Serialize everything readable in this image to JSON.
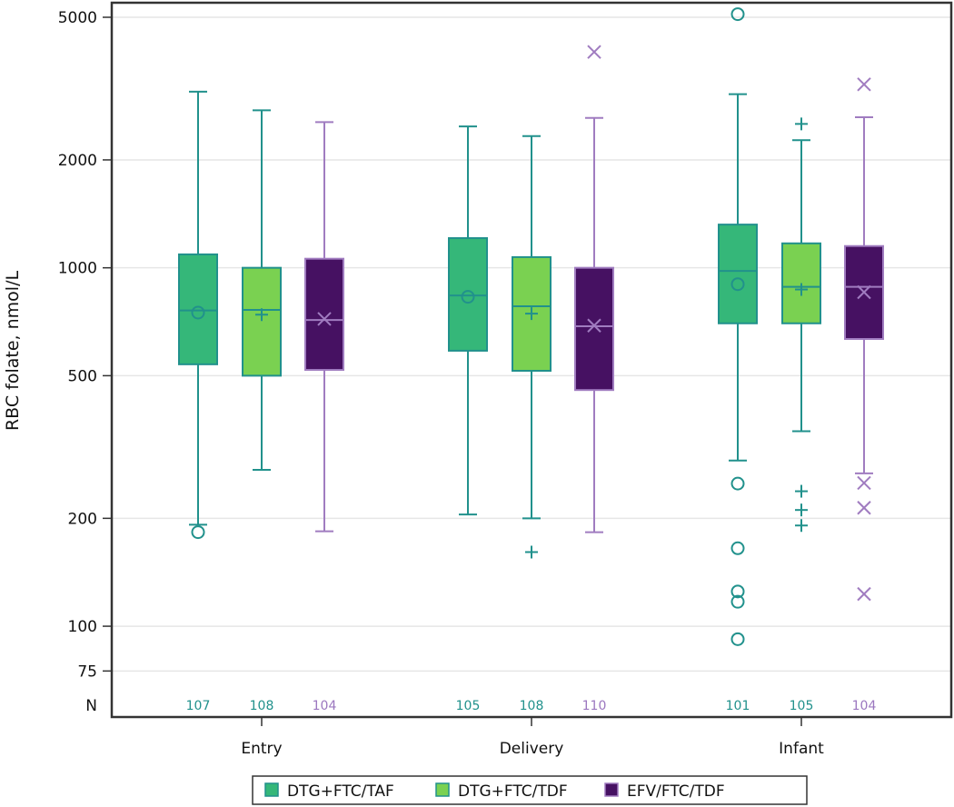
{
  "chart_data": {
    "type": "box",
    "title": "",
    "xlabel": "",
    "ylabel": "RBC folate, nmol/L",
    "yscale": "log",
    "ylim": [
      68,
      5150
    ],
    "yticks": [
      75,
      100,
      200,
      500,
      1000,
      2000,
      5000
    ],
    "ytick_labels": [
      "75",
      "100",
      "200",
      "500",
      "1000",
      "2000",
      "5000"
    ],
    "n_row_label": "N",
    "grid": "horizontal",
    "legend_position": "bottom-center",
    "categories": [
      "Entry",
      "Delivery",
      "Infant"
    ],
    "series": [
      {
        "name": "DTG+FTC/TAF",
        "fill": "#35b779",
        "stroke": "#21918c",
        "mean_marker": "circle",
        "n_color": "#21918c",
        "boxes": [
          {
            "category": "Entry",
            "n": 107,
            "whisker_low": 192,
            "q1": 538,
            "median": 760,
            "q3": 1090,
            "whisker_high": 3100,
            "mean": 750,
            "outliers": [
              183
            ]
          },
          {
            "category": "Delivery",
            "n": 105,
            "whisker_low": 205,
            "q1": 587,
            "median": 837,
            "q3": 1210,
            "whisker_high": 2480,
            "mean": 830,
            "outliers": []
          },
          {
            "category": "Infant",
            "n": 101,
            "whisker_low": 290,
            "q1": 700,
            "median": 980,
            "q3": 1320,
            "whisker_high": 3050,
            "mean": 900,
            "outliers": [
              5100,
              250,
              165,
              125,
              117,
              92
            ]
          }
        ]
      },
      {
        "name": "DTG+FTC/TDF",
        "fill": "#7ad151",
        "stroke": "#21918c",
        "mean_marker": "plus",
        "n_color": "#21918c",
        "boxes": [
          {
            "category": "Entry",
            "n": 108,
            "whisker_low": 273,
            "q1": 500,
            "median": 763,
            "q3": 1000,
            "whisker_high": 2750,
            "mean": 740,
            "outliers": []
          },
          {
            "category": "Delivery",
            "n": 108,
            "whisker_low": 200,
            "q1": 516,
            "median": 781,
            "q3": 1071,
            "whisker_high": 2330,
            "mean": 745,
            "outliers": [
              161
            ]
          },
          {
            "category": "Infant",
            "n": 105,
            "whisker_low": 350,
            "q1": 700,
            "median": 885,
            "q3": 1170,
            "whisker_high": 2270,
            "mean": 870,
            "outliers": [
              2520,
              238,
              211,
              191
            ]
          }
        ]
      },
      {
        "name": "EFV/FTC/TDF",
        "fill": "#461162",
        "stroke": "#a07cc0",
        "mean_marker": "x",
        "n_color": "#9b77bf",
        "boxes": [
          {
            "category": "Entry",
            "n": 104,
            "whisker_low": 184,
            "q1": 519,
            "median": 715,
            "q3": 1060,
            "whisker_high": 2550,
            "mean": 720,
            "outliers": []
          },
          {
            "category": "Delivery",
            "n": 110,
            "whisker_low": 183,
            "q1": 456,
            "median": 687,
            "q3": 1000,
            "whisker_high": 2620,
            "mean": 690,
            "outliers": [
              4000
            ]
          },
          {
            "category": "Infant",
            "n": 104,
            "whisker_low": 267,
            "q1": 633,
            "median": 885,
            "q3": 1150,
            "whisker_high": 2630,
            "mean": 855,
            "outliers": [
              3250,
              251,
              214,
              123
            ]
          }
        ]
      }
    ]
  }
}
